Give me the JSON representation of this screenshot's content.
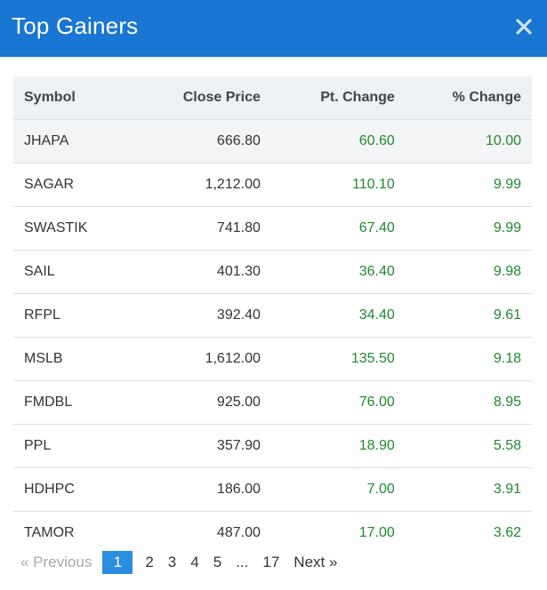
{
  "modal": {
    "title": "Top Gainers",
    "close_icon": "close-icon"
  },
  "colors": {
    "header": "#1976d2",
    "positive": "#1e8a2e",
    "active_page": "#2a8ee0"
  },
  "table": {
    "headers": [
      "Symbol",
      "Close Price",
      "Pt. Change",
      "% Change"
    ],
    "rows": [
      {
        "symbol": "JHAPA",
        "close": "666.80",
        "pt": "60.60",
        "pct": "10.00"
      },
      {
        "symbol": "SAGAR",
        "close": "1,212.00",
        "pt": "110.10",
        "pct": "9.99"
      },
      {
        "symbol": "SWASTIK",
        "close": "741.80",
        "pt": "67.40",
        "pct": "9.99"
      },
      {
        "symbol": "SAIL",
        "close": "401.30",
        "pt": "36.40",
        "pct": "9.98"
      },
      {
        "symbol": "RFPL",
        "close": "392.40",
        "pt": "34.40",
        "pct": "9.61"
      },
      {
        "symbol": "MSLB",
        "close": "1,612.00",
        "pt": "135.50",
        "pct": "9.18"
      },
      {
        "symbol": "FMDBL",
        "close": "925.00",
        "pt": "76.00",
        "pct": "8.95"
      },
      {
        "symbol": "PPL",
        "close": "357.90",
        "pt": "18.90",
        "pct": "5.58"
      },
      {
        "symbol": "HDHPC",
        "close": "186.00",
        "pt": "7.00",
        "pct": "3.91"
      },
      {
        "symbol": "TAMOR",
        "close": "487.00",
        "pt": "17.00",
        "pct": "3.62"
      }
    ]
  },
  "pagination": {
    "previous": "« Previous",
    "pages": [
      "1",
      "2",
      "3",
      "4",
      "5"
    ],
    "ellipsis": "...",
    "last_page": "17",
    "next": "Next »",
    "current": "1"
  }
}
